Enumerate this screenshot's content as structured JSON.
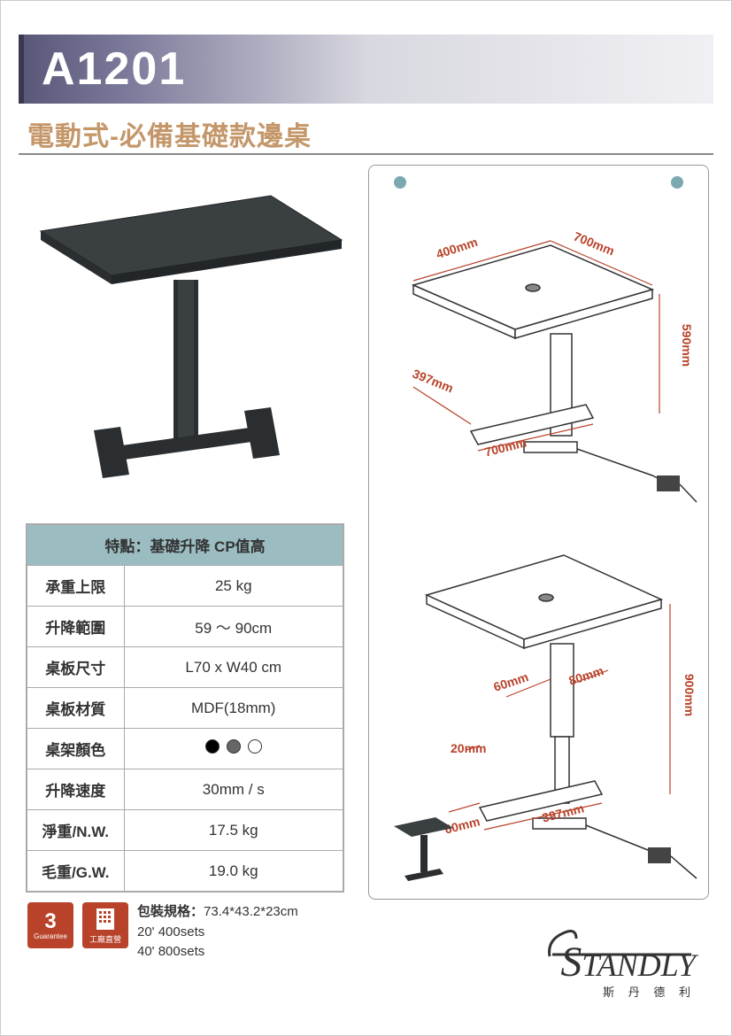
{
  "header": {
    "model": "A1201",
    "subtitle": "電動式-必備基礎款邊桌"
  },
  "spec": {
    "header": "特點：基礎升降 CP值高",
    "rows": [
      {
        "label": "承重上限",
        "value": "25 kg"
      },
      {
        "label": "升降範圍",
        "value": "59 ～ 90cm"
      },
      {
        "label": "桌板尺寸",
        "value": "L70 x W40 cm"
      },
      {
        "label": "桌板材質",
        "value": "MDF(18mm)"
      },
      {
        "label": "桌架顏色",
        "value": "__COLORS__"
      },
      {
        "label": "升降速度",
        "value": "30mm / s"
      },
      {
        "label": "淨重/N.W.",
        "value": "17.5 kg"
      },
      {
        "label": "毛重/G.W.",
        "value": "19.0 kg"
      }
    ],
    "colors": [
      "#000000",
      "#666666",
      "#ffffff"
    ]
  },
  "diagram": {
    "dims_top": {
      "d1": "400mm",
      "d2": "700mm",
      "d3": "590mm",
      "d4": "397mm",
      "d5": "700mm"
    },
    "dims_bottom": {
      "d1": "60mm",
      "d2": "80mm",
      "d3": "900mm",
      "d4": "20mm",
      "d5": "60mm",
      "d6": "397mm"
    }
  },
  "footer": {
    "guarantee_years": "3",
    "guarantee_label": "Guarantee",
    "factory_label": "工廠直營",
    "pack_label": "包裝規格：",
    "pack_size": "73.4*43.2*23cm",
    "pack_20": "20' 400sets",
    "pack_40": "40' 800sets"
  },
  "brand": {
    "name_first": "S",
    "name_rest": "TANDLY",
    "tagline": "斯 丹 德 利"
  },
  "style": {
    "accent": "#b8432a",
    "header_left": "#5a5878",
    "teal": "#9bbdc1"
  }
}
